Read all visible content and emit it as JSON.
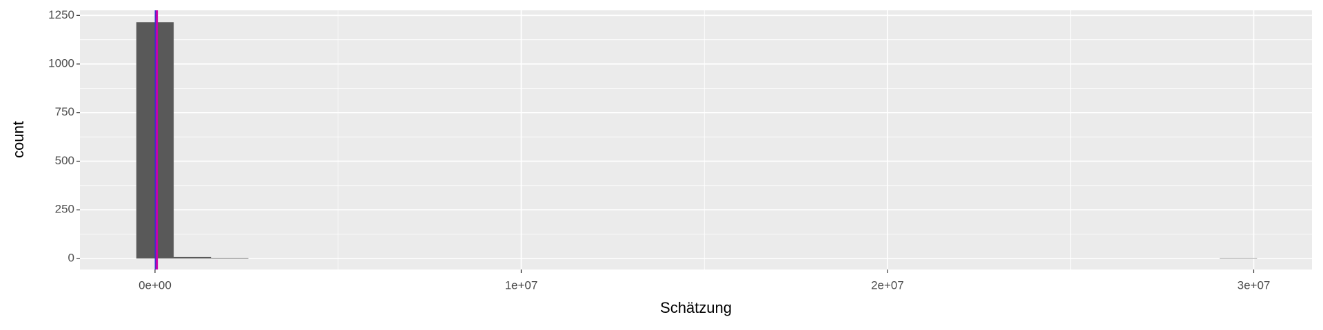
{
  "chart_data": {
    "type": "histogram",
    "x_label": "Schätzung",
    "y_label": "count",
    "bins": [
      -510000,
      510000,
      1530000,
      2550000,
      3570000,
      4590000,
      5610000,
      6630000,
      7650000,
      8670000,
      9690000,
      10710000,
      11730000,
      12750000,
      13770000,
      14790000,
      15810000,
      16830000,
      17850000,
      18870000,
      19890000,
      20910000,
      21930000,
      22950000,
      23970000,
      24990000,
      26010000,
      27030000,
      28050000,
      29070000,
      30090000
    ],
    "values": [
      1215,
      7,
      3,
      0,
      0,
      0,
      0,
      0,
      0,
      0,
      0,
      0,
      0,
      0,
      0,
      0,
      0,
      0,
      0,
      0,
      0,
      0,
      0,
      0,
      0,
      0,
      0,
      0,
      0,
      2
    ],
    "color": "#595959",
    "vlines": [
      {
        "value": 20000,
        "color": "#3333cc"
      },
      {
        "value": 50000,
        "color": "#cc00aa"
      }
    ],
    "xlim": [
      -2050000,
      31590000
    ],
    "ylim": [
      -57,
      1276
    ],
    "xticks": [
      {
        "value": 0,
        "label": "0e+00"
      },
      {
        "value": 10000000,
        "label": "1e+07"
      },
      {
        "value": 20000000,
        "label": "2e+07"
      },
      {
        "value": 30000000,
        "label": "3e+07"
      }
    ],
    "yticks": [
      0,
      250,
      500,
      750,
      1000,
      1250
    ],
    "x_minor_grid": [
      5000000,
      15000000,
      25000000
    ],
    "y_minor_grid": [
      125,
      375,
      625,
      875,
      1125
    ],
    "grid": true
  }
}
